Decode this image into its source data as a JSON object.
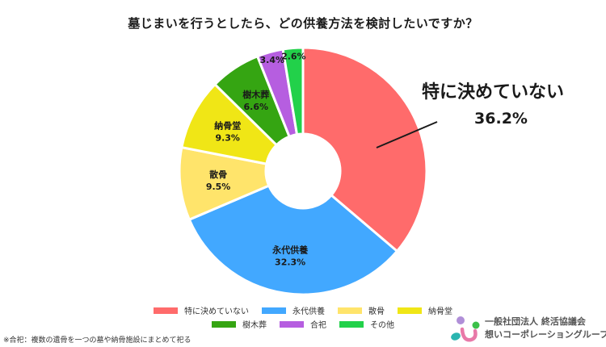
{
  "chart_data": {
    "type": "pie",
    "subtype": "donut",
    "title": "墓じまいを行うとしたら、どの供養方法を検討したいですか？",
    "categories": [
      "特に決めていない",
      "永代供養",
      "散骨",
      "納骨堂",
      "樹木葬",
      "合祀",
      "その他"
    ],
    "values": [
      36.2,
      32.3,
      9.5,
      9.3,
      6.6,
      3.4,
      2.6
    ],
    "value_labels": [
      "36.2%",
      "32.3%",
      "9.5%",
      "9.3%",
      "6.6%",
      "3.4%",
      "2.6%"
    ],
    "colors": [
      "#ff6b6b",
      "#42a8ff",
      "#ffe46b",
      "#f0e616",
      "#35a512",
      "#b65ee0",
      "#22d14a"
    ],
    "start_angle_deg": 0,
    "direction": "clockwise",
    "legend_position": "bottom",
    "center": [
      375,
      212
    ],
    "outer_radius": 153,
    "inner_radius": 46,
    "annotation": {
      "text": "特に決めていない",
      "value": "36.2%"
    }
  },
  "title": "墓じまいを行うとしたら、どの供養方法を検討したいですか？",
  "callout": {
    "name": "特に決めていない",
    "pct": "36.2%"
  },
  "legend": {
    "row1": [
      {
        "label": "特に決めていない",
        "color": "#ff6b6b"
      },
      {
        "label": "永代供養",
        "color": "#42a8ff"
      },
      {
        "label": "散骨",
        "color": "#ffe46b"
      },
      {
        "label": "納骨堂",
        "color": "#f0e616"
      }
    ],
    "row2": [
      {
        "label": "樹木葬",
        "color": "#35a512"
      },
      {
        "label": "合祀",
        "color": "#b65ee0"
      },
      {
        "label": "その他",
        "color": "#22d14a"
      }
    ]
  },
  "footnote": "※合祀：複数の遺骨を一つの墓や納骨施設にまとめて祀る",
  "logo": {
    "line1": "一般社団法人 終活協議会",
    "line2": "想いコーポレーショングループ"
  }
}
